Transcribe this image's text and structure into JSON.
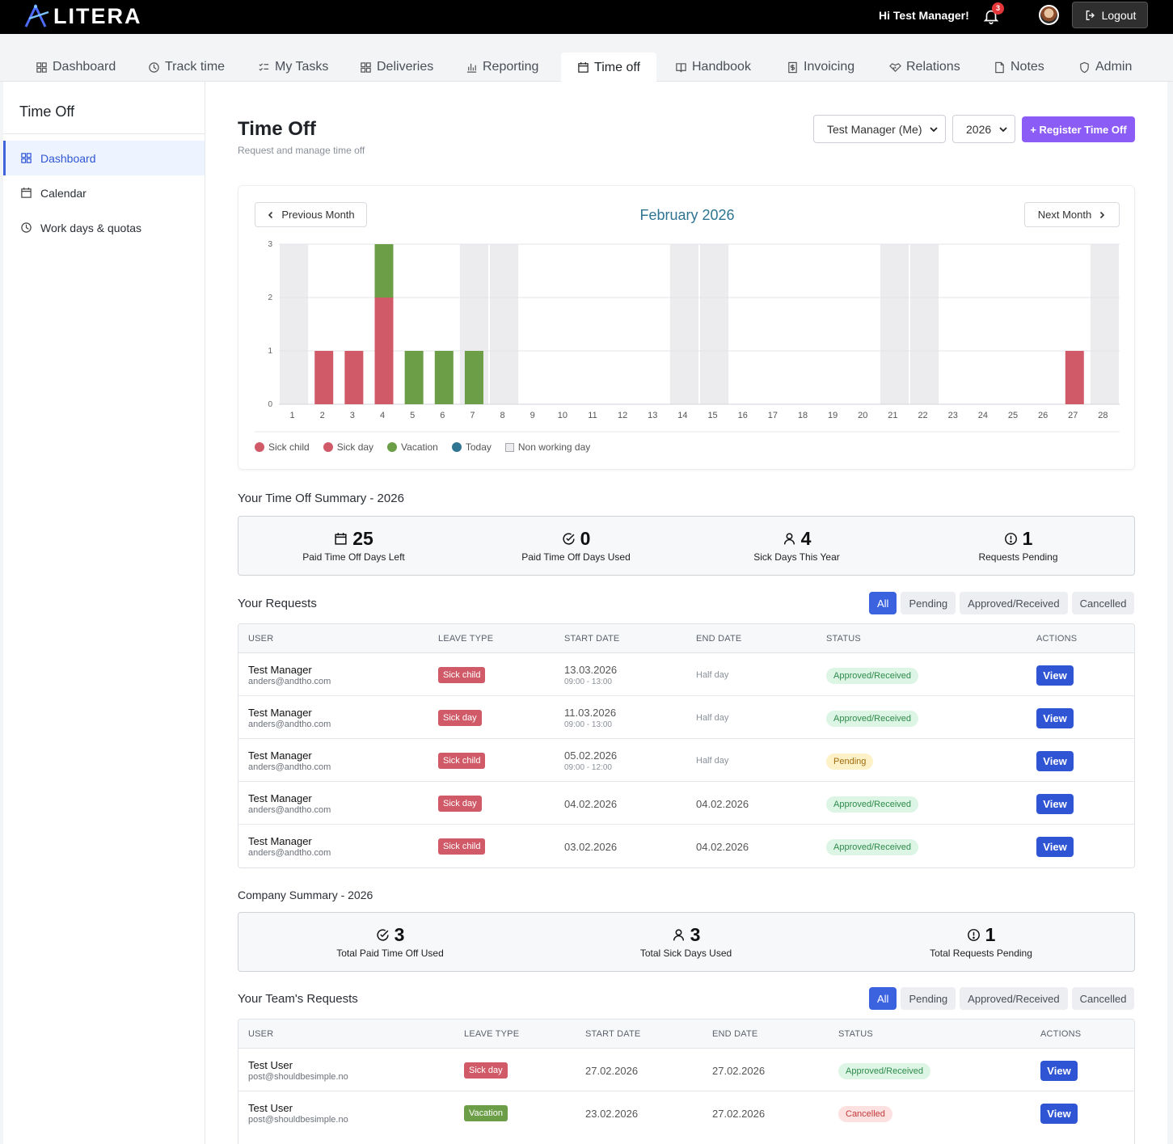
{
  "app": {
    "logo_text": "LITERA",
    "greeting": "Hi Test Manager!",
    "notification_count": "3",
    "logout_label": "Logout"
  },
  "nav": {
    "tabs": [
      {
        "label": "Dashboard",
        "icon": "grid-icon"
      },
      {
        "label": "Track time",
        "icon": "clock-icon"
      },
      {
        "label": "My Tasks",
        "icon": "checklist-icon"
      },
      {
        "label": "Deliveries",
        "icon": "grid-icon"
      },
      {
        "label": "Reporting",
        "icon": "bar-chart-icon"
      },
      {
        "label": "Time off",
        "icon": "calendar-icon",
        "active": true
      },
      {
        "label": "Handbook",
        "icon": "book-icon"
      },
      {
        "label": "Invoicing",
        "icon": "receipt-icon"
      },
      {
        "label": "Relations",
        "icon": "handshake-icon"
      },
      {
        "label": "Notes",
        "icon": "note-icon"
      },
      {
        "label": "Admin",
        "icon": "shield-icon"
      }
    ]
  },
  "sidebar": {
    "title": "Time Off",
    "items": [
      {
        "label": "Dashboard",
        "icon": "grid-icon",
        "active": true
      },
      {
        "label": "Calendar",
        "icon": "calendar-icon"
      },
      {
        "label": "Work days & quotas",
        "icon": "clock-icon"
      }
    ]
  },
  "page": {
    "title": "Time Off",
    "subtitle": "Request and manage time off",
    "user_select": "Test Manager (Me)",
    "year_select": "2026",
    "register_label": "+ Register Time Off"
  },
  "calendar": {
    "prev_label": "Previous Month",
    "next_label": "Next Month",
    "month_title": "February 2026"
  },
  "chart_data": {
    "type": "bar",
    "stacked": true,
    "categories": [
      "1",
      "2",
      "3",
      "4",
      "5",
      "6",
      "7",
      "8",
      "9",
      "10",
      "11",
      "12",
      "13",
      "14",
      "15",
      "16",
      "17",
      "18",
      "19",
      "20",
      "21",
      "22",
      "23",
      "24",
      "25",
      "26",
      "27",
      "28"
    ],
    "series": [
      {
        "name": "Sick child",
        "color": "#d05a67",
        "values": [
          0,
          1,
          1,
          1,
          0,
          0,
          0,
          0,
          0,
          0,
          0,
          0,
          0,
          0,
          0,
          0,
          0,
          0,
          0,
          0,
          0,
          0,
          0,
          0,
          0,
          0,
          0,
          0
        ]
      },
      {
        "name": "Sick day",
        "color": "#d05a67",
        "values": [
          0,
          0,
          0,
          1,
          0,
          0,
          0,
          0,
          0,
          0,
          0,
          0,
          0,
          0,
          0,
          0,
          0,
          0,
          0,
          0,
          0,
          0,
          0,
          0,
          0,
          0,
          1,
          0
        ]
      },
      {
        "name": "Vacation",
        "color": "#6b9e46",
        "values": [
          0,
          0,
          0,
          1,
          1,
          1,
          1,
          0,
          0,
          0,
          0,
          0,
          0,
          0,
          0,
          0,
          0,
          0,
          0,
          0,
          0,
          0,
          0,
          0,
          0,
          0,
          0,
          0
        ]
      }
    ],
    "non_working_days": [
      1,
      7,
      8,
      14,
      15,
      21,
      22,
      28
    ],
    "legend": [
      {
        "label": "Sick child",
        "color": "#d05a67",
        "shape": "dot"
      },
      {
        "label": "Sick day",
        "color": "#d05a67",
        "shape": "dot"
      },
      {
        "label": "Vacation",
        "color": "#6b9e46",
        "shape": "dot"
      },
      {
        "label": "Today",
        "color": "#2f7592",
        "shape": "dot"
      },
      {
        "label": "Non working day",
        "color": "#ececef",
        "shape": "square"
      }
    ],
    "ylim": [
      0,
      3
    ],
    "yticks": [
      "0",
      "1",
      "2",
      "3"
    ],
    "legend_position": "bottom-left",
    "grid": true
  },
  "my_summary": {
    "title": "Your Time Off Summary - 2026",
    "stats": [
      {
        "value": "25",
        "label": "Paid Time Off Days Left",
        "icon": "calendar-icon"
      },
      {
        "value": "0",
        "label": "Paid Time Off Days Used",
        "icon": "check-circle-icon"
      },
      {
        "value": "4",
        "label": "Sick Days This Year",
        "icon": "user-icon"
      },
      {
        "value": "1",
        "label": "Requests Pending",
        "icon": "alert-circle-icon"
      }
    ]
  },
  "my_requests": {
    "title": "Your Requests",
    "filters": [
      "All",
      "Pending",
      "Approved/Received",
      "Cancelled"
    ],
    "columns": [
      "USER",
      "LEAVE TYPE",
      "START DATE",
      "END DATE",
      "STATUS",
      "ACTIONS"
    ],
    "rows": [
      {
        "name": "Test Manager",
        "email": "anders@andtho.com",
        "type": "Sick child",
        "type_color": "#d05a67",
        "start": "13.03.2026",
        "start_time": "09:00 - 13:00",
        "end": "Half day",
        "end_half": true,
        "status": "Approved/Received",
        "status_kind": "approved",
        "action": "View"
      },
      {
        "name": "Test Manager",
        "email": "anders@andtho.com",
        "type": "Sick day",
        "type_color": "#d05a67",
        "start": "11.03.2026",
        "start_time": "09:00 - 13:00",
        "end": "Half day",
        "end_half": true,
        "status": "Approved/Received",
        "status_kind": "approved",
        "action": "View"
      },
      {
        "name": "Test Manager",
        "email": "anders@andtho.com",
        "type": "Sick child",
        "type_color": "#d05a67",
        "start": "05.02.2026",
        "start_time": "09:00 - 12:00",
        "end": "Half day",
        "end_half": true,
        "status": "Pending",
        "status_kind": "pending",
        "action": "View"
      },
      {
        "name": "Test Manager",
        "email": "anders@andtho.com",
        "type": "Sick day",
        "type_color": "#d05a67",
        "start": "04.02.2026",
        "start_time": "",
        "end": "04.02.2026",
        "end_half": false,
        "status": "Approved/Received",
        "status_kind": "approved",
        "action": "View"
      },
      {
        "name": "Test Manager",
        "email": "anders@andtho.com",
        "type": "Sick child",
        "type_color": "#d05a67",
        "start": "03.02.2026",
        "start_time": "",
        "end": "04.02.2026",
        "end_half": false,
        "status": "Approved/Received",
        "status_kind": "approved",
        "action": "View"
      }
    ]
  },
  "company_summary": {
    "title": "Company Summary - 2026",
    "stats": [
      {
        "value": "3",
        "label": "Total Paid Time Off Used",
        "icon": "check-circle-icon"
      },
      {
        "value": "3",
        "label": "Total Sick Days Used",
        "icon": "user-icon"
      },
      {
        "value": "1",
        "label": "Total Requests Pending",
        "icon": "alert-circle-icon"
      }
    ]
  },
  "team_requests": {
    "title": "Your Team's Requests",
    "filters": [
      "All",
      "Pending",
      "Approved/Received",
      "Cancelled"
    ],
    "columns": [
      "USER",
      "LEAVE TYPE",
      "START DATE",
      "END DATE",
      "STATUS",
      "ACTIONS"
    ],
    "rows": [
      {
        "name": "Test User",
        "email": "post@shouldbesimple.no",
        "type": "Sick day",
        "type_color": "#d05a67",
        "start": "27.02.2026",
        "end": "27.02.2026",
        "status": "Approved/Received",
        "status_kind": "approved",
        "action": "View"
      },
      {
        "name": "Test User",
        "email": "post@shouldbesimple.no",
        "type": "Vacation",
        "type_color": "#6b9e46",
        "start": "23.02.2026",
        "end": "27.02.2026",
        "status": "Cancelled",
        "status_kind": "cancelled",
        "action": "View"
      }
    ]
  }
}
